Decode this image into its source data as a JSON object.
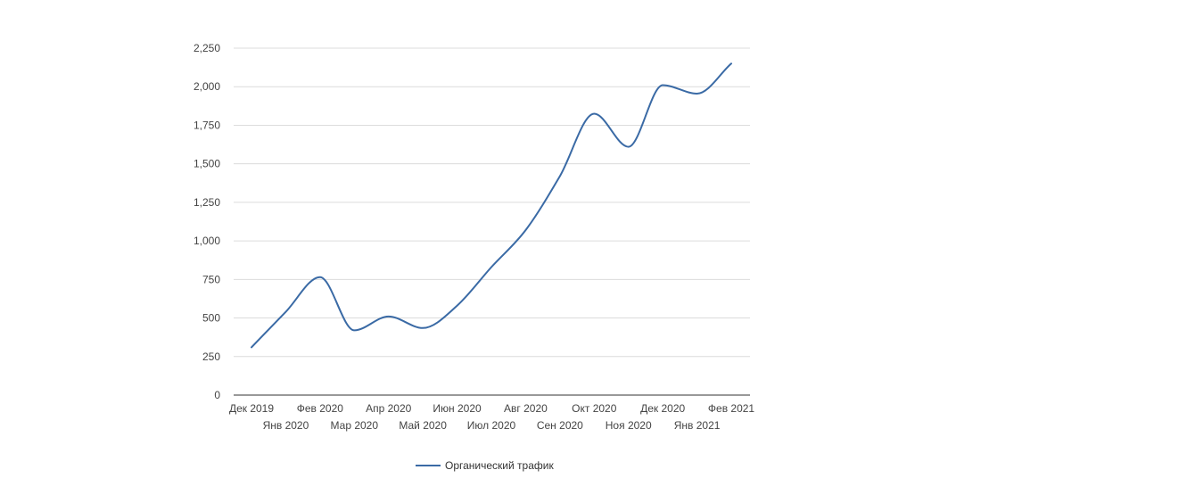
{
  "chart_data": {
    "type": "line",
    "title": "",
    "xlabel": "",
    "ylabel": "",
    "ylim": [
      0,
      2250
    ],
    "yticks": [
      0,
      250,
      500,
      750,
      1000,
      1250,
      1500,
      1750,
      2000,
      2250
    ],
    "ytick_labels": [
      "0",
      "250",
      "500",
      "750",
      "1,000",
      "1,250",
      "1,500",
      "1,750",
      "2,000",
      "2,250"
    ],
    "grid": true,
    "legend_position": "bottom",
    "categories": [
      "Дек 2019",
      "Янв 2020",
      "Фев 2020",
      "Мар 2020",
      "Апр 2020",
      "Май 2020",
      "Июн 2020",
      "Июл 2020",
      "Авг 2020",
      "Сен 2020",
      "Окт 2020",
      "Ноя 2020",
      "Дек 2020",
      "Янв 2021",
      "Фев 2021"
    ],
    "series": [
      {
        "name": "Органический трафик",
        "color": "#3a6aa5",
        "values": [
          310,
          540,
          765,
          420,
          510,
          435,
          580,
          830,
          1070,
          1420,
          1825,
          1610,
          2010,
          1955,
          2150
        ]
      }
    ]
  }
}
